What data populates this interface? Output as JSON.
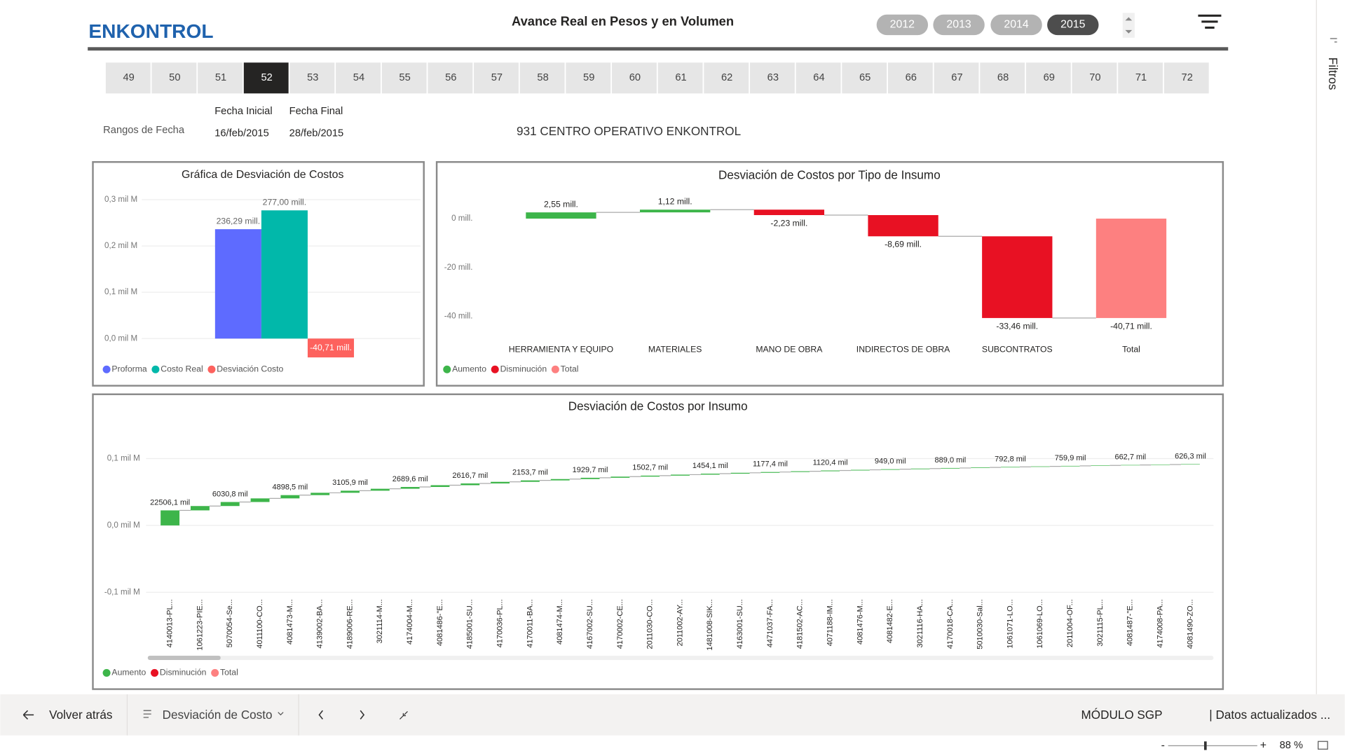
{
  "header": {
    "logo": "ENKONTROL",
    "title": "Avance Real en Pesos y en Volumen",
    "years": [
      {
        "label": "2012",
        "selected": false
      },
      {
        "label": "2013",
        "selected": false
      },
      {
        "label": "2014",
        "selected": false
      },
      {
        "label": "2015",
        "selected": true
      }
    ]
  },
  "weeks": {
    "items": [
      49,
      50,
      51,
      52,
      53,
      54,
      55,
      56,
      57,
      58,
      59,
      60,
      61,
      62,
      63,
      64,
      65,
      66,
      67,
      68,
      69,
      70,
      71,
      72
    ],
    "selected_week": 52
  },
  "date_range": {
    "label": "Rangos de Fecha",
    "start_label": "Fecha Inicial",
    "start": "16/feb/2015",
    "end_label": "Fecha Final",
    "end": "28/feb/2015"
  },
  "center": "931 CENTRO OPERATIVO ENKONTROL",
  "chart_data": [
    {
      "type": "bar",
      "title": "Gráfica de Desviación de Costos",
      "categories": [
        null
      ],
      "series": [
        {
          "name": "Proforma",
          "color": "#5e6bff",
          "values": [
            0.23629
          ],
          "value_labels": [
            "236,29 mill."
          ]
        },
        {
          "name": "Costo Real",
          "color": "#01b8aa",
          "values": [
            0.277
          ],
          "value_labels": [
            "277,00 mill."
          ]
        },
        {
          "name": "Desviación Costo",
          "color": "#fd625e",
          "values": [
            -0.04071
          ],
          "value_labels": [
            "-40,71 mill."
          ]
        }
      ],
      "ylim": [
        -0.05,
        0.31
      ],
      "yticks": [
        {
          "value": 0,
          "label": "0,0 mil M"
        },
        {
          "value": 0.1,
          "label": "0,1 mil M"
        },
        {
          "value": 0.2,
          "label": "0,2 mil M"
        },
        {
          "value": 0.3,
          "label": "0,3 mil M"
        }
      ],
      "grid": true
    },
    {
      "type": "waterfall",
      "title": "Desviación de Costos por Tipo de Insumo",
      "categories": [
        "HERRAMIENTA Y EQUIPO",
        "MATERIALES",
        "MANO DE OBRA",
        "INDIRECTOS DE OBRA",
        "SUBCONTRATOS",
        "Total"
      ],
      "values": [
        2.55,
        1.12,
        -2.23,
        -8.69,
        -33.46,
        -40.71
      ],
      "value_labels": [
        "2,55 mill.",
        "1,12 mill.",
        "-2,23 mill.",
        "-8,69 mill.",
        "-33,46 mill.",
        "-40,71 mill."
      ],
      "is_total": [
        false,
        false,
        false,
        false,
        false,
        true
      ],
      "legend": [
        {
          "name": "Aumento",
          "color": "#3db54a"
        },
        {
          "name": "Disminución",
          "color": "#e81123"
        },
        {
          "name": "Total",
          "color": "#fd8080"
        }
      ],
      "ylim": [
        -42,
        9
      ],
      "yticks": [
        {
          "value": -40,
          "label": "-40 mill."
        },
        {
          "value": -20,
          "label": "-20 mill."
        },
        {
          "value": 0,
          "label": "0 mill."
        }
      ],
      "grid": false
    },
    {
      "type": "waterfall",
      "title": "Desviación de Costos por Insumo",
      "categories": [
        "4140013-PL...",
        "1061223-PIE...",
        "5070054-Se...",
        "4011100-CO...",
        "4081473-M...",
        "4139002-BA...",
        "4189006-RE...",
        "3021114-M...",
        "4174004-M...",
        "4081486-\"E...",
        "4185001-SU...",
        "4170036-PL...",
        "4170011-BA...",
        "4081474-M...",
        "4167002-SU...",
        "4170002-CE...",
        "2011030-CO...",
        "2011002-AY...",
        "1481008-SIK...",
        "4163001-SU...",
        "4471037-FA...",
        "4181502-AC...",
        "4071188-IM...",
        "4081476-M...",
        "4081482-E...",
        "3021116-HA...",
        "4170018-CA...",
        "5010030-Sal...",
        "1061071-LO...",
        "1061069-LO...",
        "2011004-OF...",
        "3021115-PL...",
        "4081487-\"E...",
        "4174008-PA...",
        "4081490-ZO..."
      ],
      "values": [
        0.0225061,
        0.0065,
        0.0060308,
        0.0054,
        0.0048985,
        0.0035,
        0.0031059,
        0.0029,
        0.0026896,
        0.00265,
        0.0026167,
        0.0024,
        0.0021537,
        0.002,
        0.0019297,
        0.0017,
        0.0015027,
        0.00148,
        0.0014541,
        0.0013,
        0.0011774,
        0.00115,
        0.0011204,
        0.001,
        0.000949,
        0.00092,
        0.000889,
        0.00083,
        0.0007928,
        0.00078,
        0.0007599,
        0.0007,
        0.0006627,
        0.00064,
        0.0006263
      ],
      "value_labels": [
        "22506,1 mil",
        null,
        "6030,8 mil",
        null,
        "4898,5 mil",
        null,
        "3105,9 mil",
        null,
        "2689,6 mil",
        null,
        "2616,7 mil",
        null,
        "2153,7 mil",
        null,
        "1929,7 mil",
        null,
        "1502,7 mil",
        null,
        "1454,1 mil",
        null,
        "1177,4 mil",
        null,
        "1120,4 mil",
        null,
        "949,0 mil",
        null,
        "889,0 mil",
        null,
        "792,8 mil",
        null,
        "759,9 mil",
        null,
        "662,7 mil",
        null,
        "626,3 mil"
      ],
      "is_total": [
        false,
        false,
        false,
        false,
        false,
        false,
        false,
        false,
        false,
        false,
        false,
        false,
        false,
        false,
        false,
        false,
        false,
        false,
        false,
        false,
        false,
        false,
        false,
        false,
        false,
        false,
        false,
        false,
        false,
        false,
        false,
        false,
        false,
        false,
        false
      ],
      "legend": [
        {
          "name": "Aumento",
          "color": "#3db54a"
        },
        {
          "name": "Disminución",
          "color": "#e81123"
        },
        {
          "name": "Total",
          "color": "#fd8080"
        }
      ],
      "ylim": [
        -0.105,
        0.12
      ],
      "yticks": [
        {
          "value": -0.1,
          "label": "-0,1 mil M"
        },
        {
          "value": 0,
          "label": "0,0 mil M"
        },
        {
          "value": 0.1,
          "label": "0,1 mil M"
        }
      ],
      "grid": true
    }
  ],
  "footer": {
    "back": "Volver atrás",
    "page": "Desviación de Costo",
    "module": "MÓDULO SGP",
    "status": "| Datos actualizados ...",
    "zoom": "88 %"
  },
  "side_panel": "Filtros"
}
